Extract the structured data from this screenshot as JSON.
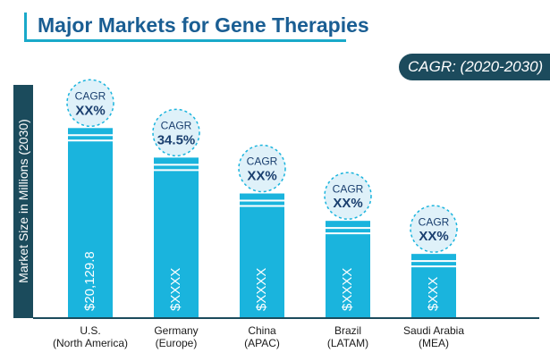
{
  "title": "Major Markets for Gene Therapies",
  "cagr_tag": "CAGR: (2020-2030)",
  "colors": {
    "bar": "#1ab4dd",
    "bubble": "#dff1f9",
    "bubble_border": "#1ab4dd",
    "text_dark": "#1a3f6f",
    "axis_dark": "#1b4b5c"
  },
  "chart_data": {
    "type": "bar",
    "title": "Major Markets for Gene Therapies",
    "ylabel": "Market Size in Millions (2030)",
    "categories": [
      "U.S. (North America)",
      "Germany (Europe)",
      "China (APAC)",
      "Brazil (LATAM)",
      "Saudi Arabia (MEA)"
    ],
    "category_lines": [
      [
        "U.S.",
        "(North America)"
      ],
      [
        "Germany",
        "(Europe)"
      ],
      [
        "China",
        "(APAC)"
      ],
      [
        "Brazil",
        "(LATAM)"
      ],
      [
        "Saudi Arabia",
        "(MEA)"
      ]
    ],
    "values": [
      20129.8,
      17000,
      13200,
      10300,
      6800
    ],
    "value_labels": [
      "$20,129.8",
      "$XXXX",
      "$XXXX",
      "$XXXX",
      "$XXX"
    ],
    "cagr_heading": "CAGR",
    "cagr_values": [
      "XX%",
      "34.5%",
      "XX%",
      "XX%",
      "XX%"
    ],
    "ylim": [
      0,
      26500
    ],
    "grid": false,
    "legend": "none"
  }
}
